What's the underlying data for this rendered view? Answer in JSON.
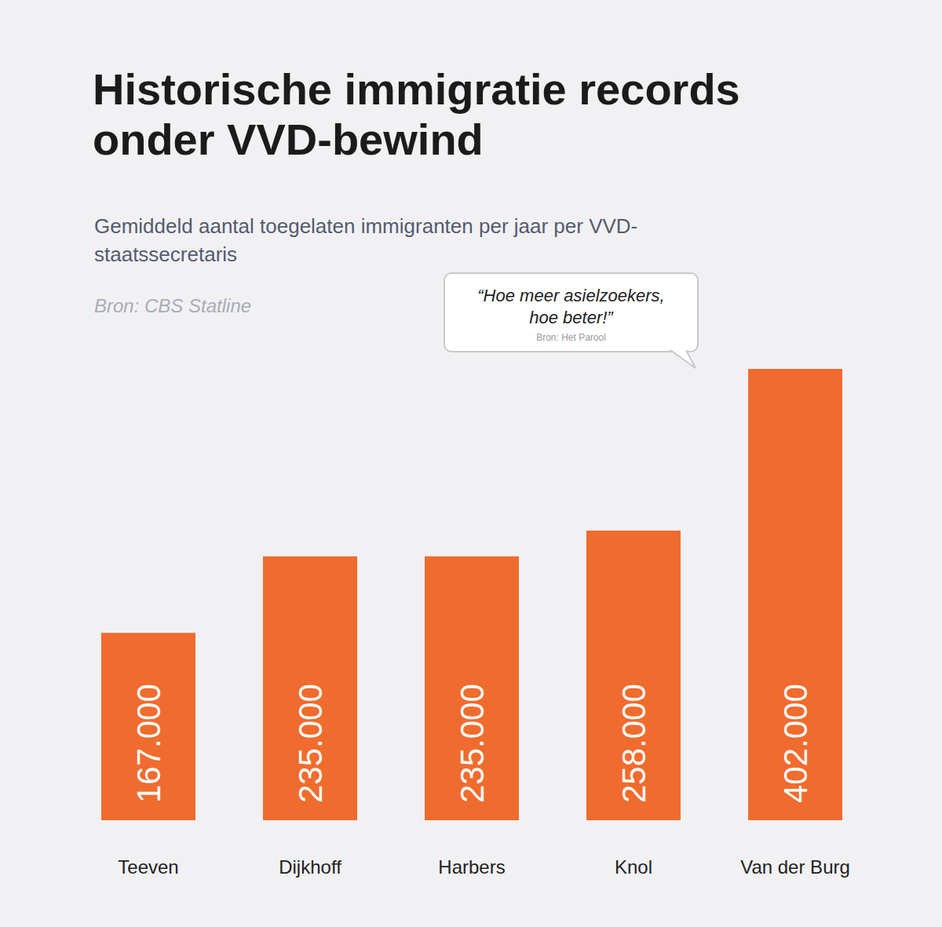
{
  "chart_data": {
    "type": "bar",
    "title": "Historische immigratie records onder VVD-bewind",
    "subtitle": "Gemiddeld aantal toegelaten immigranten per jaar per VVD-staatssecretaris",
    "source": "Bron: CBS Statline",
    "annotations": [
      {
        "text": "“Hoe meer asielzoekers, hoe beter!”",
        "source": "Bron: Het Parool"
      }
    ],
    "categories": [
      "Teeven",
      "Dijkhoff",
      "Harbers",
      "Knol",
      "Van der Burg"
    ],
    "values": [
      167000,
      235000,
      235000,
      258000,
      402000
    ],
    "value_labels": [
      "167.000",
      "235.000",
      "235.000",
      "258.000",
      "402.000"
    ],
    "color": "#ef6c2e",
    "data_labels": true,
    "tick_labels": "x",
    "grid": false
  }
}
